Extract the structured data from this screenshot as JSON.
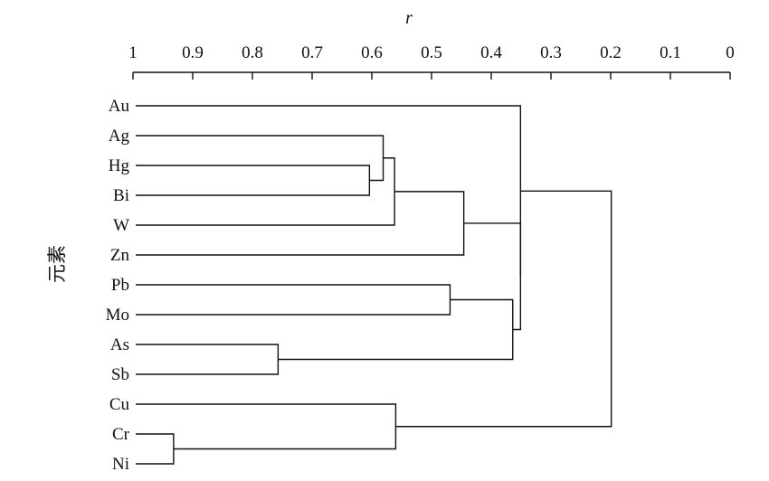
{
  "chart_data": {
    "type": "dendrogram",
    "xlabel": "r",
    "ylabel": "元素",
    "xlim": [
      1,
      0
    ],
    "ticks": [
      "1",
      "0.9",
      "0.8",
      "0.7",
      "0.6",
      "0.5",
      "0.4",
      "0.3",
      "0.2",
      "0.1",
      "0"
    ],
    "tick_values": [
      1,
      0.9,
      0.8,
      0.7,
      0.6,
      0.5,
      0.4,
      0.3,
      0.2,
      0.1,
      0
    ],
    "leaves": [
      "Au",
      "Ag",
      "Hg",
      "Bi",
      "W",
      "Zn",
      "Pb",
      "Mo",
      "As",
      "Sb",
      "Cu",
      "Cr",
      "Ni"
    ],
    "merges": [
      {
        "id": "C1",
        "children": [
          "Hg",
          "Bi"
        ],
        "r": 0.604
      },
      {
        "id": "C2",
        "children": [
          "Ag",
          "C1"
        ],
        "r": 0.581
      },
      {
        "id": "C3",
        "children": [
          "C2",
          "W"
        ],
        "r": 0.562
      },
      {
        "id": "C4",
        "children": [
          "C3",
          "Zn"
        ],
        "r": 0.446
      },
      {
        "id": "C5",
        "children": [
          "Pb",
          "Mo"
        ],
        "r": 0.469
      },
      {
        "id": "C6",
        "children": [
          "As",
          "Sb"
        ],
        "r": 0.757
      },
      {
        "id": "C7",
        "children": [
          "C5",
          "C6"
        ],
        "r": 0.364
      },
      {
        "id": "C8",
        "children": [
          "C4",
          "C7"
        ],
        "r": 0.351
      },
      {
        "id": "C9",
        "children": [
          "Au",
          "C8"
        ],
        "r": 0.351
      },
      {
        "id": "C10",
        "children": [
          "Cr",
          "Ni"
        ],
        "r": 0.932
      },
      {
        "id": "C11",
        "children": [
          "Cu",
          "C10"
        ],
        "r": 0.56
      },
      {
        "id": "C12",
        "children": [
          "C9",
          "C11"
        ],
        "r": 0.199
      }
    ]
  }
}
